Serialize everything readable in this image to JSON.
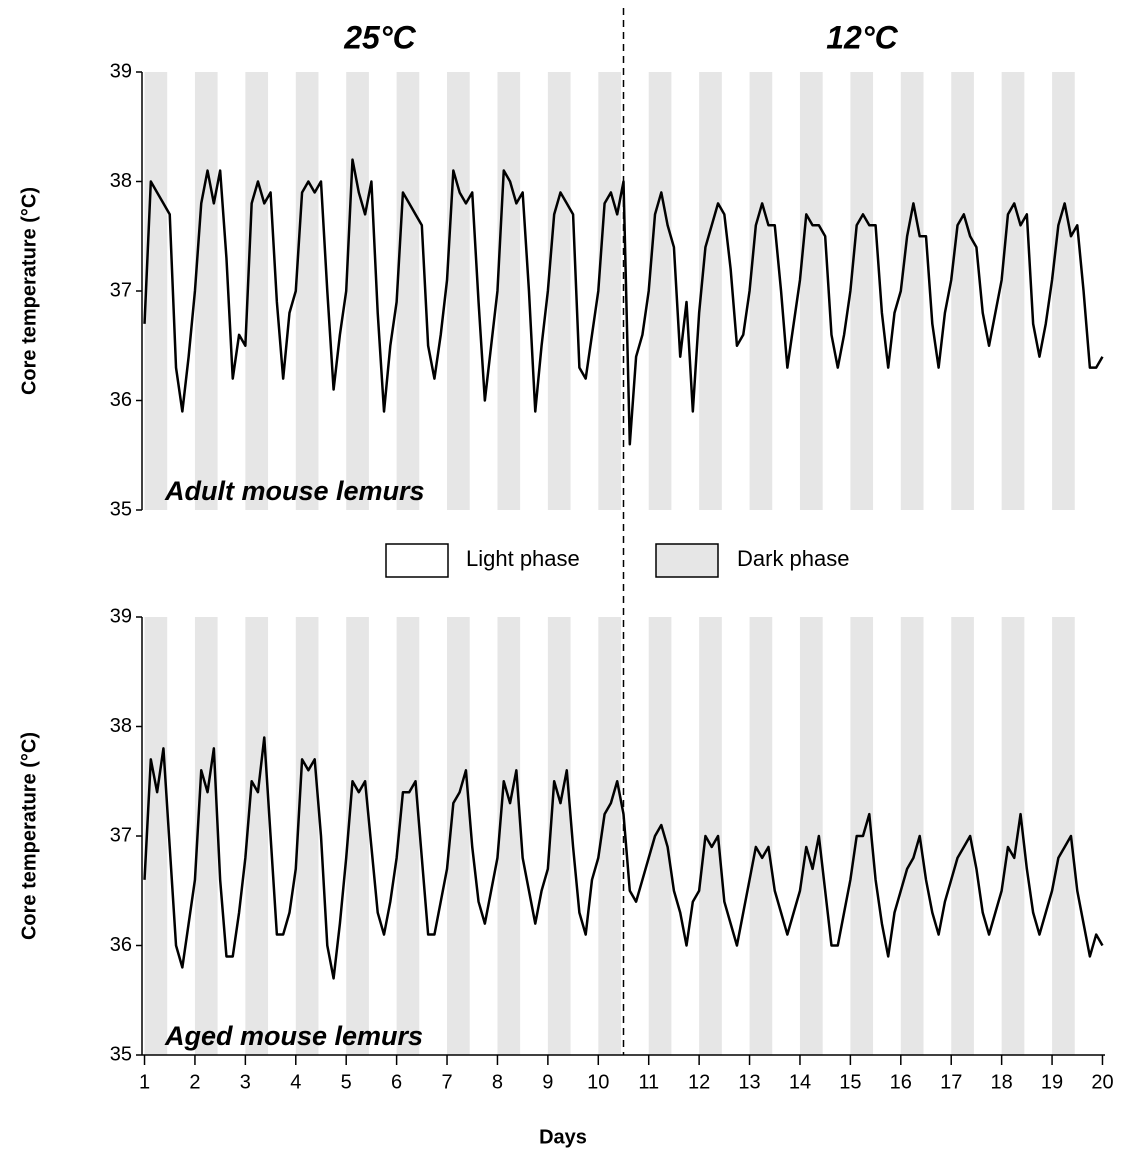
{
  "chart_data": {
    "type": "line",
    "annotations": [
      "25°C",
      "12°C"
    ],
    "xlabel": "Days",
    "ylabel": "Core temperature (°C)",
    "xlim": [
      0.95,
      20.05
    ],
    "xticks": [
      1,
      2,
      3,
      4,
      5,
      6,
      7,
      8,
      9,
      10,
      11,
      12,
      13,
      14,
      15,
      16,
      17,
      18,
      19,
      20
    ],
    "ylim": [
      35,
      39
    ],
    "yticks": [
      35,
      36,
      37,
      38,
      39
    ],
    "divider_x": 10.5,
    "dark_phases": [
      [
        1,
        1.45
      ],
      [
        2,
        2.45
      ],
      [
        3,
        3.45
      ],
      [
        4,
        4.45
      ],
      [
        5,
        5.45
      ],
      [
        6,
        6.45
      ],
      [
        7,
        7.45
      ],
      [
        8,
        8.45
      ],
      [
        9,
        9.45
      ],
      [
        10,
        10.45
      ],
      [
        11,
        11.45
      ],
      [
        12,
        12.45
      ],
      [
        13,
        13.45
      ],
      [
        14,
        14.45
      ],
      [
        15,
        15.45
      ],
      [
        16,
        16.45
      ],
      [
        17,
        17.45
      ],
      [
        18,
        18.45
      ],
      [
        19,
        19.45
      ]
    ],
    "legend": [
      {
        "name": "Light phase",
        "color": "#ffffff"
      },
      {
        "name": "Dark phase",
        "color": "#e6e6e6"
      }
    ],
    "x": [
      1,
      1.125,
      1.25,
      1.375,
      1.5,
      1.625,
      1.75,
      1.875,
      2,
      2.125,
      2.25,
      2.375,
      2.5,
      2.625,
      2.75,
      2.875,
      3,
      3.125,
      3.25,
      3.375,
      3.5,
      3.625,
      3.75,
      3.875,
      4,
      4.125,
      4.25,
      4.375,
      4.5,
      4.625,
      4.75,
      4.875,
      5,
      5.125,
      5.25,
      5.375,
      5.5,
      5.625,
      5.75,
      5.875,
      6,
      6.125,
      6.25,
      6.375,
      6.5,
      6.625,
      6.75,
      6.875,
      7,
      7.125,
      7.25,
      7.375,
      7.5,
      7.625,
      7.75,
      7.875,
      8,
      8.125,
      8.25,
      8.375,
      8.5,
      8.625,
      8.75,
      8.875,
      9,
      9.125,
      9.25,
      9.375,
      9.5,
      9.625,
      9.75,
      9.875,
      10,
      10.125,
      10.25,
      10.375,
      10.5,
      10.625,
      10.75,
      10.875,
      11,
      11.125,
      11.25,
      11.375,
      11.5,
      11.625,
      11.75,
      11.875,
      12,
      12.125,
      12.25,
      12.375,
      12.5,
      12.625,
      12.75,
      12.875,
      13,
      13.125,
      13.25,
      13.375,
      13.5,
      13.625,
      13.75,
      13.875,
      14,
      14.125,
      14.25,
      14.375,
      14.5,
      14.625,
      14.75,
      14.875,
      15,
      15.125,
      15.25,
      15.375,
      15.5,
      15.625,
      15.75,
      15.875,
      16,
      16.125,
      16.25,
      16.375,
      16.5,
      16.625,
      16.75,
      16.875,
      17,
      17.125,
      17.25,
      17.375,
      17.5,
      17.625,
      17.75,
      17.875,
      18,
      18.125,
      18.25,
      18.375,
      18.5,
      18.625,
      18.75,
      18.875,
      19,
      19.125,
      19.25,
      19.375,
      19.5,
      19.625,
      19.75,
      19.875,
      20
    ],
    "series": [
      {
        "name": "Adult mouse lemurs",
        "color": "#000000",
        "values": [
          36.7,
          38.0,
          37.9,
          37.8,
          37.7,
          36.3,
          35.9,
          36.4,
          37.0,
          37.8,
          38.1,
          37.8,
          38.1,
          37.3,
          36.2,
          36.6,
          36.5,
          37.8,
          38.0,
          37.8,
          37.9,
          36.9,
          36.2,
          36.8,
          37.0,
          37.9,
          38.0,
          37.9,
          38.0,
          37.0,
          36.1,
          36.6,
          37.0,
          38.2,
          37.9,
          37.7,
          38.0,
          36.8,
          35.9,
          36.5,
          36.9,
          37.9,
          37.8,
          37.7,
          37.6,
          36.5,
          36.2,
          36.6,
          37.1,
          38.1,
          37.9,
          37.8,
          37.9,
          36.9,
          36.0,
          36.5,
          37.0,
          38.1,
          38.0,
          37.8,
          37.9,
          37.0,
          35.9,
          36.5,
          37.0,
          37.7,
          37.9,
          37.8,
          37.7,
          36.3,
          36.2,
          36.6,
          37.0,
          37.8,
          37.9,
          37.7,
          38.0,
          35.6,
          36.4,
          36.6,
          37.0,
          37.7,
          37.9,
          37.6,
          37.4,
          36.4,
          36.9,
          35.9,
          36.8,
          37.4,
          37.6,
          37.8,
          37.7,
          37.2,
          36.5,
          36.6,
          37.0,
          37.6,
          37.8,
          37.6,
          37.6,
          37.0,
          36.3,
          36.7,
          37.1,
          37.7,
          37.6,
          37.6,
          37.5,
          36.6,
          36.3,
          36.6,
          37.0,
          37.6,
          37.7,
          37.6,
          37.6,
          36.8,
          36.3,
          36.8,
          37.0,
          37.5,
          37.8,
          37.5,
          37.5,
          36.7,
          36.3,
          36.8,
          37.1,
          37.6,
          37.7,
          37.5,
          37.4,
          36.8,
          36.5,
          36.8,
          37.1,
          37.7,
          37.8,
          37.6,
          37.7,
          36.7,
          36.4,
          36.7,
          37.1,
          37.6,
          37.8,
          37.5,
          37.6,
          37.0,
          36.3,
          36.3,
          36.4
        ]
      },
      {
        "name": "Aged mouse lemurs",
        "color": "#000000",
        "values": [
          36.6,
          37.7,
          37.4,
          37.8,
          36.9,
          36.0,
          35.8,
          36.2,
          36.6,
          37.6,
          37.4,
          37.8,
          36.6,
          35.9,
          35.9,
          36.3,
          36.8,
          37.5,
          37.4,
          37.9,
          37.0,
          36.1,
          36.1,
          36.3,
          36.7,
          37.7,
          37.6,
          37.7,
          37.0,
          36.0,
          35.7,
          36.2,
          36.8,
          37.5,
          37.4,
          37.5,
          36.9,
          36.3,
          36.1,
          36.4,
          36.8,
          37.4,
          37.4,
          37.5,
          36.8,
          36.1,
          36.1,
          36.4,
          36.7,
          37.3,
          37.4,
          37.6,
          36.9,
          36.4,
          36.2,
          36.5,
          36.8,
          37.5,
          37.3,
          37.6,
          36.8,
          36.5,
          36.2,
          36.5,
          36.7,
          37.5,
          37.3,
          37.6,
          36.9,
          36.3,
          36.1,
          36.6,
          36.8,
          37.2,
          37.3,
          37.5,
          37.2,
          36.5,
          36.4,
          36.6,
          36.8,
          37.0,
          37.1,
          36.9,
          36.5,
          36.3,
          36.0,
          36.4,
          36.5,
          37.0,
          36.9,
          37.0,
          36.4,
          36.2,
          36.0,
          36.3,
          36.6,
          36.9,
          36.8,
          36.9,
          36.5,
          36.3,
          36.1,
          36.3,
          36.5,
          36.9,
          36.7,
          37.0,
          36.5,
          36.0,
          36.0,
          36.3,
          36.6,
          37.0,
          37.0,
          37.2,
          36.6,
          36.2,
          35.9,
          36.3,
          36.5,
          36.7,
          36.8,
          37.0,
          36.6,
          36.3,
          36.1,
          36.4,
          36.6,
          36.8,
          36.9,
          37.0,
          36.7,
          36.3,
          36.1,
          36.3,
          36.5,
          36.9,
          36.8,
          37.2,
          36.7,
          36.3,
          36.1,
          36.3,
          36.5,
          36.8,
          36.9,
          37.0,
          36.5,
          36.2,
          35.9,
          36.1,
          36.0
        ]
      }
    ]
  }
}
